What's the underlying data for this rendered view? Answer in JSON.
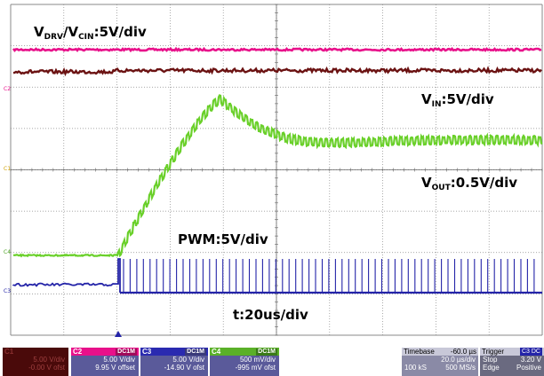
{
  "screen": {
    "labels": {
      "drv_cin": {
        "v": "V",
        "s1": "DRV",
        "sep": "/V",
        "s2": "CIN",
        "tail": ":5V/div"
      },
      "vin": {
        "v": "V",
        "s1": "IN",
        "tail": ":5V/div"
      },
      "vout": {
        "v": "V",
        "s1": "OUT",
        "tail": ":0.5V/div"
      },
      "pwm": "PWM:5V/div",
      "time": "t:20us/div"
    },
    "channel_markers": {
      "c2": "C2",
      "c1": "C1",
      "c4": "C4",
      "c3": "C3"
    },
    "colors": {
      "pink": "#e8108a",
      "maroon": "#6b1212",
      "green": "#6ad02a",
      "blue": "#2424a8",
      "grid": "#8a8a8a"
    }
  },
  "bottom": {
    "c1": {
      "name": "C1",
      "tag": "DC1M",
      "line1": "5.00 V/div",
      "line2": "-0.00 V ofst"
    },
    "c2": {
      "name": "C2",
      "tag": "DC1M",
      "line1": "5.00 V/div",
      "line2": "9.95 V offset"
    },
    "c3": {
      "name": "C3",
      "tag": "DC1M",
      "line1": "5.00 V/div",
      "line2": "-14.90 V ofst"
    },
    "c4": {
      "name": "C4",
      "tag": "DC1M",
      "line1": "500 mV/div",
      "line2": "-995 mV ofst"
    },
    "timebase": {
      "label": "Timebase",
      "value": "-60.0 µs",
      "line1": "20.0 µs/div",
      "samples": "100 kS",
      "rate": "500 MS/s"
    },
    "trigger": {
      "label": "Trigger",
      "tag": "C3 DC",
      "mode": "Stop",
      "level": "3.20 V",
      "type": "Edge",
      "slope": "Positive"
    }
  }
}
